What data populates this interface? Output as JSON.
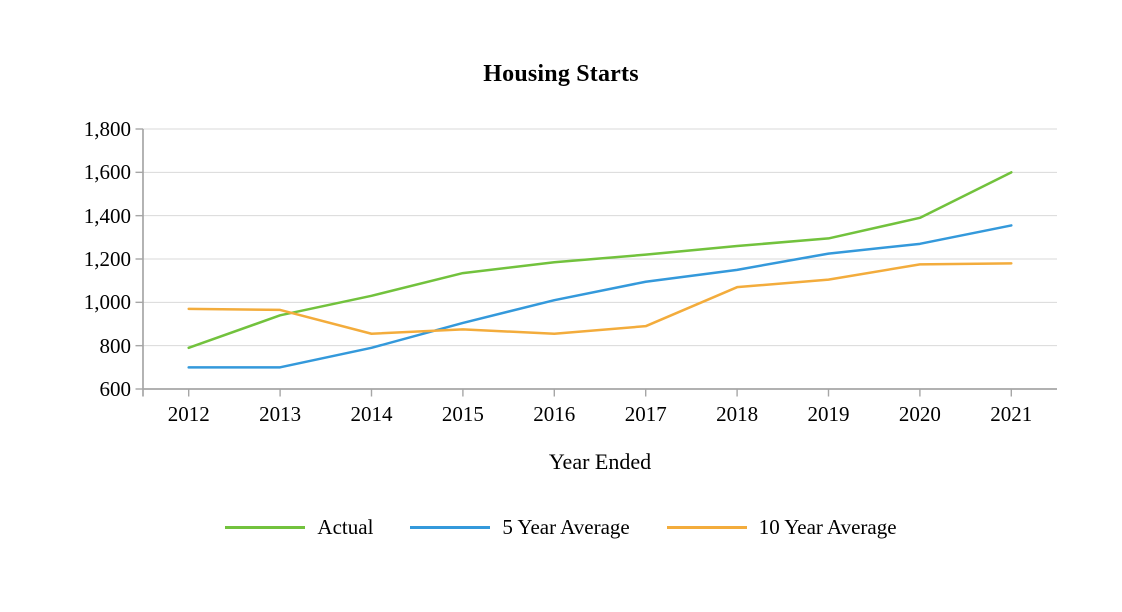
{
  "title": "Housing Starts",
  "x_axis_title": "Year Ended",
  "legend_labels": [
    "Actual",
    "5 Year Average",
    "10 Year Average"
  ],
  "colors": {
    "actual_line": "#72C23D",
    "five_year_line": "#3499DB",
    "ten_year_line": "#F3AC3C",
    "gridline": "#D9D9D9",
    "axis_line": "#A6A6A6",
    "text": "#000000",
    "background": "#FFFFFF"
  },
  "chart_data": {
    "type": "line",
    "title": "Housing Starts",
    "xlabel": "Year Ended",
    "ylabel": "",
    "ylim": [
      600,
      1800
    ],
    "y_tick_step": 200,
    "y_tick_labels": [
      "600",
      "800",
      "1,000",
      "1,200",
      "1,400",
      "1,600",
      "1,800"
    ],
    "grid": true,
    "legend_position": "bottom",
    "categories": [
      "2012",
      "2013",
      "2014",
      "2015",
      "2016",
      "2017",
      "2018",
      "2019",
      "2020",
      "2021"
    ],
    "series": [
      {
        "name": "Actual",
        "color": "#72C23D",
        "values": [
          790,
          940,
          1030,
          1135,
          1185,
          1220,
          1260,
          1295,
          1390,
          1600
        ]
      },
      {
        "name": "5 Year Average",
        "color": "#3499DB",
        "values": [
          700,
          700,
          790,
          905,
          1010,
          1095,
          1150,
          1225,
          1270,
          1355
        ]
      },
      {
        "name": "10 Year Average",
        "color": "#F3AC3C",
        "values": [
          970,
          965,
          855,
          875,
          855,
          890,
          1070,
          1105,
          1175,
          1180
        ]
      }
    ]
  }
}
